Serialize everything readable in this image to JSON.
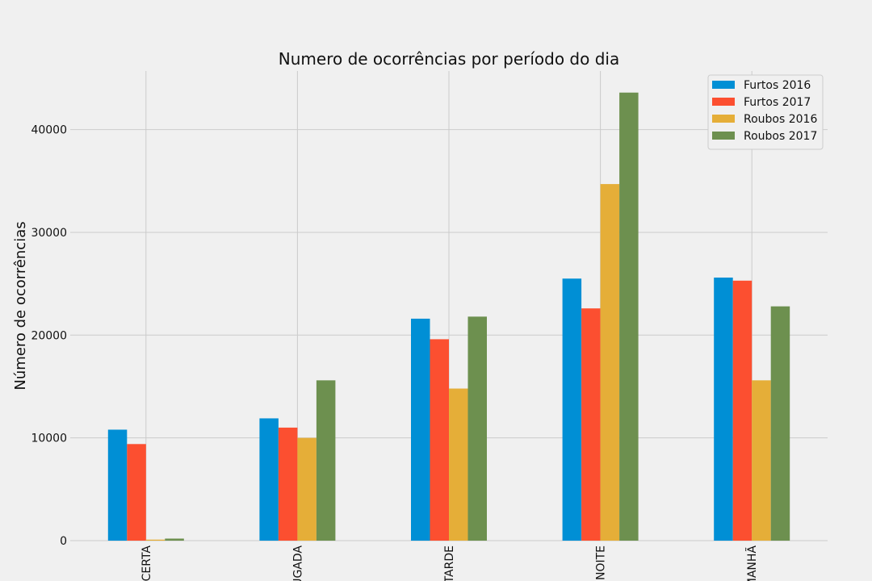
{
  "chart_data": {
    "type": "bar",
    "title": "Numero de ocorrências por período do dia",
    "xlabel": "",
    "ylabel": "Número de ocorrências",
    "categories": [
      "CERTA",
      "UGADA",
      "TARDE",
      "NOITE",
      "MANHÃ"
    ],
    "series": [
      {
        "name": "Furtos 2016",
        "color": "#008fd5",
        "values": [
          10800,
          11900,
          21600,
          25500,
          25600
        ]
      },
      {
        "name": "Furtos 2017",
        "color": "#fc4f30",
        "values": [
          9400,
          11000,
          19600,
          22600,
          25300
        ]
      },
      {
        "name": "Roubos 2016",
        "color": "#e5ae38",
        "values": [
          100,
          10000,
          14800,
          34700,
          15600
        ]
      },
      {
        "name": "Roubos 2017",
        "color": "#6d904f",
        "values": [
          200,
          15600,
          21800,
          43600,
          22800
        ]
      }
    ],
    "ylim": [
      0,
      45700
    ],
    "yticks": [
      0,
      10000,
      20000,
      30000,
      40000
    ],
    "grid": true,
    "legend_position": "top-right"
  }
}
